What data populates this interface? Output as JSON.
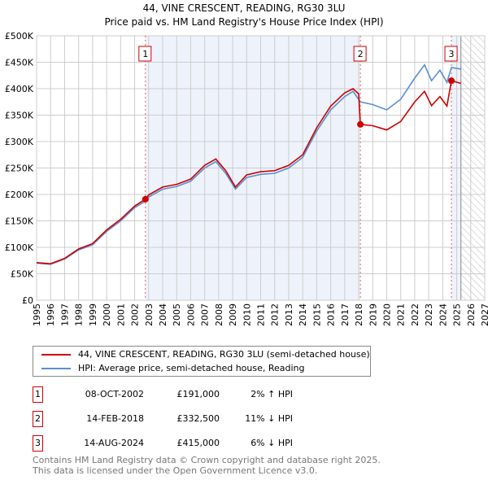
{
  "chart_data": {
    "type": "line",
    "title": "44, VINE CRESCENT, READING, RG30 3LU",
    "subtitle": "Price paid vs. HM Land Registry's House Price Index (HPI)",
    "xlim": [
      1995,
      2027
    ],
    "ylim": [
      0,
      500000
    ],
    "x_ticks": [
      "1995",
      "1996",
      "1997",
      "1998",
      "1999",
      "2000",
      "2001",
      "2002",
      "2003",
      "2004",
      "2005",
      "2006",
      "2007",
      "2008",
      "2009",
      "2010",
      "2011",
      "2012",
      "2013",
      "2014",
      "2015",
      "2016",
      "2017",
      "2018",
      "2019",
      "2020",
      "2021",
      "2022",
      "2023",
      "2024",
      "2025",
      "2026",
      "2027"
    ],
    "y_ticks": [
      "£0",
      "£50K",
      "£100K",
      "£150K",
      "£200K",
      "£250K",
      "£300K",
      "£350K",
      "£400K",
      "£450K",
      "£500K"
    ],
    "series": [
      {
        "name": "HPI: Average price, semi-detached house, Reading",
        "color": "#5b8fd1",
        "x": [
          1995,
          1996,
          1997,
          1998,
          1999,
          2000,
          2001,
          2002,
          2002.77,
          2003,
          2004,
          2005,
          2006,
          2007,
          2007.8,
          2008.5,
          2009.2,
          2010,
          2011,
          2012,
          2013,
          2014,
          2015,
          2016,
          2017,
          2017.6,
          2018.12,
          2019,
          2020,
          2021,
          2022,
          2022.7,
          2023.2,
          2023.8,
          2024.3,
          2024.62,
          2025.3
        ],
        "y": [
          70000,
          68000,
          78000,
          95000,
          105000,
          130000,
          150000,
          175000,
          187000,
          195000,
          210000,
          215000,
          225000,
          250000,
          262000,
          240000,
          210000,
          232000,
          238000,
          240000,
          250000,
          270000,
          320000,
          360000,
          385000,
          395000,
          375000,
          370000,
          360000,
          380000,
          420000,
          445000,
          415000,
          435000,
          412000,
          440000,
          437000
        ]
      },
      {
        "name": "44, VINE CRESCENT, READING, RG30 3LU (semi-detached house)",
        "color": "#cc0000",
        "x": [
          1995,
          1996,
          1997,
          1998,
          1999,
          2000,
          2001,
          2002,
          2002.77,
          2003,
          2004,
          2005,
          2006,
          2007,
          2007.8,
          2008.5,
          2009.2,
          2010,
          2011,
          2012,
          2013,
          2014,
          2015,
          2016,
          2017,
          2017.6,
          2018.0,
          2018.12,
          2019,
          2020,
          2021,
          2022,
          2022.7,
          2023.2,
          2023.8,
          2024.3,
          2024.62,
          2025.3
        ],
        "y": [
          71000,
          69000,
          79000,
          97000,
          107000,
          133000,
          153000,
          178000,
          191000,
          199000,
          214000,
          219000,
          229000,
          255000,
          267000,
          245000,
          214000,
          237000,
          243000,
          245000,
          255000,
          275000,
          326000,
          367000,
          392000,
          400000,
          390000,
          332500,
          330000,
          322000,
          338000,
          375000,
          395000,
          368000,
          385000,
          367000,
          415000,
          410000
        ]
      }
    ],
    "sales": [
      {
        "label": "1",
        "date": "08-OCT-2002",
        "x": 2002.77,
        "price": "£191,000",
        "value": 191000,
        "hpi": "2% ↑ HPI"
      },
      {
        "label": "2",
        "date": "14-FEB-2018",
        "x": 2018.12,
        "price": "£332,500",
        "value": 332500,
        "hpi": "11% ↓ HPI"
      },
      {
        "label": "3",
        "date": "14-AUG-2024",
        "x": 2024.62,
        "price": "£415,000",
        "value": 415000,
        "hpi": "6% ↓ HPI"
      }
    ],
    "forecast_from": 2025.3
  },
  "legend": {
    "red": "44, VINE CRESCENT, READING, RG30 3LU (semi-detached house)",
    "blue": "HPI: Average price, semi-detached house, Reading"
  },
  "footer": {
    "line1": "Contains HM Land Registry data © Crown copyright and database right 2025.",
    "line2": "This data is licensed under the Open Government Licence v3.0."
  }
}
